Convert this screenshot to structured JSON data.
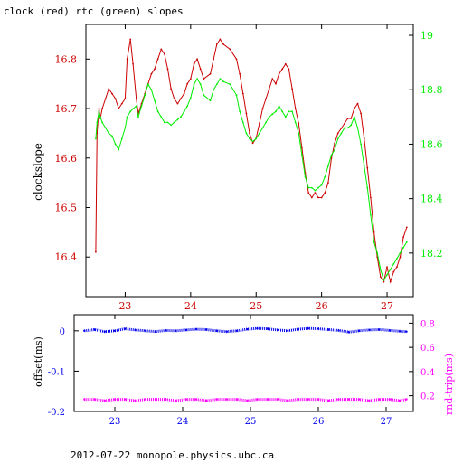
{
  "title": "clock (red) rtc (green) slopes",
  "footer": "2012-07-22  monopole.physics.ubc.ca",
  "colors": {
    "clock": "#cc0000",
    "rtc": "#00ee00",
    "offset": "#0000ee",
    "rndtrip": "#ff00ff",
    "axis": "#000000"
  },
  "chart_data": [
    {
      "type": "line",
      "title": "clock (red) rtc (green) slopes",
      "ylabel": "clockslope",
      "y2label": "",
      "xlim": [
        22.4,
        27.4
      ],
      "ylim": [
        16.32,
        16.87
      ],
      "y2lim": [
        18.04,
        19.04
      ],
      "xticks": [
        23,
        24,
        25,
        26,
        27
      ],
      "yticks": [
        16.4,
        16.5,
        16.6,
        16.7,
        16.8
      ],
      "y2ticks": [
        18.2,
        18.4,
        18.6,
        18.8,
        19
      ],
      "series": [
        {
          "name": "clock",
          "axis": "left",
          "x": [
            22.55,
            22.57,
            22.6,
            22.62,
            22.65,
            22.7,
            22.75,
            22.8,
            22.85,
            22.9,
            22.95,
            23.0,
            23.03,
            23.08,
            23.12,
            23.17,
            23.2,
            23.25,
            23.3,
            23.35,
            23.4,
            23.45,
            23.5,
            23.55,
            23.6,
            23.65,
            23.7,
            23.75,
            23.8,
            23.85,
            23.9,
            23.95,
            24.0,
            24.05,
            24.1,
            24.15,
            24.2,
            24.3,
            24.35,
            24.4,
            24.45,
            24.5,
            24.6,
            24.7,
            24.75,
            24.8,
            24.85,
            24.9,
            24.95,
            25.0,
            25.05,
            25.1,
            25.15,
            25.2,
            25.25,
            25.3,
            25.35,
            25.4,
            25.45,
            25.5,
            25.55,
            25.6,
            25.65,
            25.7,
            25.75,
            25.8,
            25.85,
            25.9,
            25.95,
            26.0,
            26.05,
            26.1,
            26.15,
            26.2,
            26.25,
            26.3,
            26.35,
            26.4,
            26.45,
            26.5,
            26.55,
            26.6,
            26.65,
            26.7,
            26.75,
            26.8,
            26.85,
            26.9,
            26.95,
            27.0,
            27.05,
            27.1,
            27.15,
            27.2,
            27.25,
            27.3
          ],
          "y": [
            16.41,
            16.65,
            16.7,
            16.68,
            16.7,
            16.72,
            16.74,
            16.73,
            16.72,
            16.7,
            16.71,
            16.72,
            16.8,
            16.84,
            16.79,
            16.72,
            16.69,
            16.71,
            16.73,
            16.75,
            16.77,
            16.78,
            16.8,
            16.82,
            16.81,
            16.78,
            16.74,
            16.72,
            16.71,
            16.72,
            16.73,
            16.75,
            16.76,
            16.79,
            16.8,
            16.78,
            16.76,
            16.77,
            16.8,
            16.83,
            16.84,
            16.83,
            16.82,
            16.8,
            16.77,
            16.73,
            16.69,
            16.65,
            16.63,
            16.64,
            16.67,
            16.7,
            16.72,
            16.74,
            16.76,
            16.75,
            16.77,
            16.78,
            16.79,
            16.78,
            16.74,
            16.7,
            16.67,
            16.62,
            16.57,
            16.53,
            16.52,
            16.53,
            16.52,
            16.52,
            16.53,
            16.55,
            16.6,
            16.63,
            16.65,
            16.66,
            16.67,
            16.68,
            16.68,
            16.7,
            16.71,
            16.69,
            16.64,
            16.58,
            16.52,
            16.45,
            16.4,
            16.36,
            16.35,
            16.38,
            16.35,
            16.37,
            16.38,
            16.4,
            16.44,
            16.46
          ]
        },
        {
          "name": "rtc",
          "axis": "right",
          "x": [
            22.55,
            22.57,
            22.6,
            22.62,
            22.65,
            22.7,
            22.75,
            22.8,
            22.85,
            22.9,
            22.95,
            23.0,
            23.03,
            23.08,
            23.12,
            23.17,
            23.2,
            23.25,
            23.3,
            23.35,
            23.4,
            23.45,
            23.5,
            23.55,
            23.6,
            23.65,
            23.7,
            23.75,
            23.8,
            23.85,
            23.9,
            23.95,
            24.0,
            24.05,
            24.1,
            24.15,
            24.2,
            24.3,
            24.35,
            24.4,
            24.45,
            24.5,
            24.6,
            24.7,
            24.75,
            24.8,
            24.85,
            24.9,
            24.95,
            25.0,
            25.05,
            25.1,
            25.15,
            25.2,
            25.25,
            25.3,
            25.35,
            25.4,
            25.45,
            25.5,
            25.55,
            25.6,
            25.65,
            25.7,
            25.75,
            25.8,
            25.85,
            25.9,
            25.95,
            26.0,
            26.05,
            26.1,
            26.15,
            26.2,
            26.25,
            26.3,
            26.35,
            26.4,
            26.45,
            26.5,
            26.55,
            26.6,
            26.65,
            26.7,
            26.75,
            26.8,
            26.85,
            26.9,
            26.95,
            27.0,
            27.05,
            27.1,
            27.15,
            27.2,
            27.25,
            27.3
          ],
          "y": [
            18.62,
            18.68,
            18.72,
            18.7,
            18.68,
            18.66,
            18.64,
            18.63,
            18.6,
            18.58,
            18.62,
            18.66,
            18.7,
            18.72,
            18.73,
            18.74,
            18.7,
            18.74,
            18.78,
            18.82,
            18.8,
            18.76,
            18.72,
            18.7,
            18.68,
            18.68,
            18.67,
            18.68,
            18.69,
            18.7,
            18.72,
            18.74,
            18.77,
            18.82,
            18.84,
            18.82,
            18.78,
            18.76,
            18.8,
            18.82,
            18.84,
            18.83,
            18.82,
            18.78,
            18.72,
            18.68,
            18.64,
            18.62,
            18.61,
            18.62,
            18.64,
            18.66,
            18.68,
            18.7,
            18.71,
            18.72,
            18.74,
            18.72,
            18.7,
            18.72,
            18.72,
            18.68,
            18.64,
            18.56,
            18.48,
            18.44,
            18.44,
            18.43,
            18.44,
            18.45,
            18.48,
            18.52,
            18.56,
            18.58,
            18.62,
            18.64,
            18.66,
            18.66,
            18.67,
            18.7,
            18.66,
            18.6,
            18.52,
            18.44,
            18.34,
            18.24,
            18.2,
            18.14,
            18.1,
            18.12,
            18.14,
            18.16,
            18.18,
            18.2,
            18.22,
            18.24
          ]
        }
      ]
    },
    {
      "type": "scatter",
      "ylabel": "offset(ms)",
      "y2label": "rnd-trip(ms)",
      "xlim": [
        22.4,
        27.4
      ],
      "ylim": [
        -0.2,
        0.04
      ],
      "y2lim": [
        0.07,
        0.87
      ],
      "xticks": [
        23,
        24,
        25,
        26,
        27
      ],
      "yticks": [
        0,
        -0.1,
        -0.2
      ],
      "y2ticks": [
        0.2,
        0.4,
        0.6,
        0.8
      ],
      "series": [
        {
          "name": "offset",
          "axis": "left",
          "x": [
            22.55,
            22.7,
            22.85,
            23.0,
            23.15,
            23.3,
            23.45,
            23.6,
            23.75,
            23.9,
            24.05,
            24.2,
            24.35,
            24.5,
            24.65,
            24.8,
            24.95,
            25.1,
            25.25,
            25.4,
            25.55,
            25.7,
            25.85,
            26.0,
            26.15,
            26.3,
            26.45,
            26.6,
            26.75,
            26.9,
            27.05,
            27.2,
            27.3
          ],
          "y": [
            0.0,
            0.003,
            -0.002,
            0.0,
            0.005,
            0.002,
            0.0,
            -0.002,
            0.001,
            0.0,
            0.002,
            0.004,
            0.003,
            0.0,
            -0.002,
            0.0,
            0.004,
            0.006,
            0.005,
            0.002,
            0.0,
            0.004,
            0.006,
            0.005,
            0.003,
            0.001,
            -0.003,
            0.0,
            0.002,
            0.003,
            0.001,
            -0.001,
            -0.002
          ]
        },
        {
          "name": "rnd-trip",
          "axis": "right",
          "x": [
            22.55,
            22.7,
            22.85,
            23.0,
            23.15,
            23.3,
            23.45,
            23.6,
            23.75,
            23.9,
            24.05,
            24.2,
            24.35,
            24.5,
            24.65,
            24.8,
            24.95,
            25.1,
            25.25,
            25.4,
            25.55,
            25.7,
            25.85,
            26.0,
            26.15,
            26.3,
            26.45,
            26.6,
            26.75,
            26.9,
            27.05,
            27.2,
            27.3
          ],
          "y": [
            0.17,
            0.17,
            0.16,
            0.17,
            0.17,
            0.16,
            0.17,
            0.17,
            0.17,
            0.16,
            0.17,
            0.17,
            0.16,
            0.17,
            0.17,
            0.17,
            0.16,
            0.17,
            0.17,
            0.17,
            0.16,
            0.17,
            0.17,
            0.17,
            0.16,
            0.17,
            0.17,
            0.17,
            0.16,
            0.17,
            0.17,
            0.16,
            0.17
          ]
        }
      ]
    }
  ]
}
